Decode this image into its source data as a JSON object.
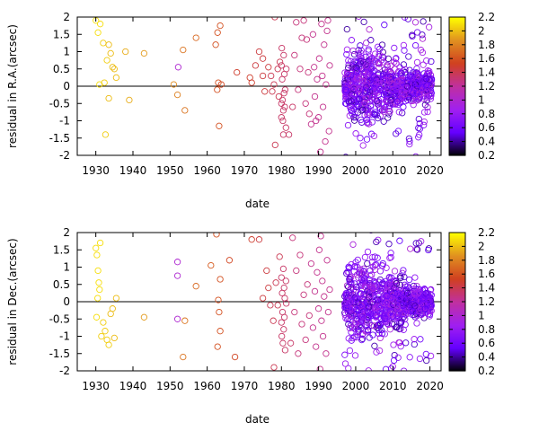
{
  "chart_data": [
    {
      "type": "scatter",
      "xlabel": "date",
      "ylabel": "residual in R.A.(arcsec)",
      "xlim": [
        1925,
        2023
      ],
      "ylim": [
        -2,
        2
      ],
      "xticks": [
        "1930",
        "1940",
        "1950",
        "1960",
        "1970",
        "1980",
        "1990",
        "2000",
        "2010",
        "2020"
      ],
      "yticks": [
        "2",
        "1.5",
        "1",
        "0.5",
        "0",
        "-0.5",
        "-1",
        "-1.5",
        "-2"
      ],
      "marker": "open-circle",
      "zero_line": true,
      "points": [
        [
          1930.0,
          1.9,
          2.1
        ],
        [
          1930.6,
          1.55,
          2.1
        ],
        [
          1931.2,
          1.8,
          2.1
        ],
        [
          1932.0,
          1.25,
          2.05
        ],
        [
          1932.6,
          -1.4,
          2.05
        ],
        [
          1933.0,
          0.75,
          2.05
        ],
        [
          1933.5,
          1.2,
          2.0
        ],
        [
          1934.0,
          0.95,
          2.0
        ],
        [
          1934.5,
          0.55,
          2.0
        ],
        [
          1935.0,
          0.5,
          2.0
        ],
        [
          1935.5,
          0.25,
          2.0
        ],
        [
          1933.5,
          -0.35,
          2.0
        ],
        [
          1931.0,
          0.05,
          2.1
        ],
        [
          1932.3,
          0.1,
          2.05
        ],
        [
          1938.0,
          1.0,
          1.95
        ],
        [
          1939.0,
          -0.4,
          1.95
        ],
        [
          1943.0,
          0.95,
          1.9
        ],
        [
          1951.0,
          0.05,
          1.85
        ],
        [
          1952.0,
          -0.25,
          1.8
        ],
        [
          1953.5,
          1.05,
          1.75
        ],
        [
          1954.0,
          -0.7,
          1.75
        ],
        [
          1952.2,
          0.55,
          1.0
        ],
        [
          1957.0,
          1.4,
          1.7
        ],
        [
          1962.3,
          1.2,
          1.6
        ],
        [
          1962.8,
          1.55,
          1.6
        ],
        [
          1963.0,
          0.1,
          1.6
        ],
        [
          1963.5,
          1.75,
          1.6
        ],
        [
          1963.2,
          -1.15,
          1.6
        ],
        [
          1962.7,
          -0.1,
          1.6
        ],
        [
          1963.8,
          0.05,
          1.55
        ],
        [
          1968.0,
          0.4,
          1.5
        ],
        [
          1971.5,
          0.25,
          1.5
        ],
        [
          1972.0,
          0.1,
          1.5
        ],
        [
          1973.0,
          0.6,
          1.45
        ],
        [
          1974.0,
          1.0,
          1.45
        ],
        [
          1975.0,
          0.3,
          1.45
        ],
        [
          1975.5,
          -0.15,
          1.45
        ],
        [
          1975.0,
          0.8,
          1.45
        ],
        [
          1976.5,
          0.55,
          1.45
        ],
        [
          1977.2,
          0.3,
          1.4
        ],
        [
          1977.5,
          -0.15,
          1.4
        ],
        [
          1978.0,
          0.05,
          1.4
        ],
        [
          1978.3,
          -1.7,
          1.4
        ],
        [
          1978.2,
          2.0,
          1.4
        ],
        [
          1979.0,
          0.5,
          1.4
        ],
        [
          1979.3,
          -0.3,
          1.4
        ],
        [
          1979.6,
          0.7,
          1.4
        ],
        [
          1980.0,
          -0.5,
          1.35
        ],
        [
          1980.0,
          0.6,
          1.35
        ],
        [
          1980.0,
          -0.9,
          1.35
        ],
        [
          1980.2,
          0.2,
          1.35
        ],
        [
          1980.3,
          -0.4,
          1.35
        ],
        [
          1980.4,
          -1.0,
          1.35
        ],
        [
          1980.5,
          -0.7,
          1.35
        ],
        [
          1980.6,
          0.9,
          1.35
        ],
        [
          1980.7,
          -0.2,
          1.35
        ],
        [
          1980.8,
          0.35,
          1.35
        ],
        [
          1980.9,
          -0.6,
          1.35
        ],
        [
          1981.0,
          -0.1,
          1.35
        ],
        [
          1981.2,
          -1.2,
          1.35
        ],
        [
          1981.3,
          0.5,
          1.35
        ],
        [
          1980.1,
          1.1,
          1.35
        ],
        [
          1980.5,
          -1.4,
          1.35
        ],
        [
          1982.0,
          -1.4,
          1.35
        ],
        [
          1983.0,
          -0.6,
          1.35
        ],
        [
          1983.5,
          0.9,
          1.3
        ],
        [
          1984.0,
          1.85,
          1.3
        ],
        [
          1984.5,
          -0.1,
          1.3
        ],
        [
          1985.0,
          0.5,
          1.3
        ],
        [
          1985.5,
          1.4,
          1.3
        ],
        [
          1986.0,
          1.9,
          1.3
        ],
        [
          1986.5,
          -0.5,
          1.3
        ],
        [
          1986.8,
          1.35,
          1.3
        ],
        [
          1987.2,
          0.4,
          1.3
        ],
        [
          1987.5,
          -0.8,
          1.3
        ],
        [
          1988.0,
          -1.1,
          1.25
        ],
        [
          1988.5,
          1.5,
          1.25
        ],
        [
          1988.8,
          0.55,
          1.25
        ],
        [
          1989.0,
          -0.3,
          1.25
        ],
        [
          1989.3,
          -1.0,
          1.25
        ],
        [
          1989.6,
          0.2,
          1.25
        ],
        [
          1990.0,
          -0.9,
          1.25
        ],
        [
          1990.2,
          0.8,
          1.25
        ],
        [
          1990.5,
          -1.9,
          1.25
        ],
        [
          1990.8,
          1.8,
          1.25
        ],
        [
          1991.0,
          0.3,
          1.25
        ],
        [
          1991.2,
          -0.6,
          1.25
        ],
        [
          1991.5,
          1.2,
          1.25
        ],
        [
          1992.0,
          0.05,
          1.25
        ],
        [
          1992.3,
          1.6,
          1.25
        ],
        [
          1992.5,
          1.9,
          1.25
        ],
        [
          1992.8,
          -1.3,
          1.25
        ],
        [
          1993.0,
          0.6,
          1.25
        ],
        [
          1991.8,
          -1.6,
          1.25
        ]
      ],
      "dense_band": {
        "from": 1997,
        "to": 2020.5,
        "approx_count": 900,
        "concentration": [
          {
            "from": 1998,
            "to": 2007.5,
            "spread": 0.75
          },
          {
            "from": 2007.5,
            "to": 2013.5,
            "spread": 0.5
          },
          {
            "from": 2013.5,
            "to": 2020.5,
            "spread": 0.3
          }
        ],
        "color_value_range": [
          0.4,
          1.0
        ]
      }
    },
    {
      "type": "scatter",
      "xlabel": "date",
      "ylabel": "residual in Dec.(arcsec)",
      "xlim": [
        1925,
        2023
      ],
      "ylim": [
        -2,
        2
      ],
      "xticks": [
        "1930",
        "1940",
        "1950",
        "1960",
        "1970",
        "1980",
        "1990",
        "2000",
        "2010",
        "2020"
      ],
      "yticks": [
        "2",
        "1.5",
        "1",
        "0.5",
        "0",
        "-0.5",
        "-1",
        "-1.5",
        "-2"
      ],
      "marker": "open-circle",
      "zero_line": true,
      "points": [
        [
          1930.0,
          1.55,
          2.1
        ],
        [
          1930.3,
          1.35,
          2.1
        ],
        [
          1930.6,
          0.9,
          2.1
        ],
        [
          1930.8,
          0.55,
          2.1
        ],
        [
          1931.0,
          0.35,
          2.1
        ],
        [
          1931.2,
          1.7,
          2.1
        ],
        [
          1930.5,
          0.1,
          2.1
        ],
        [
          1930.2,
          -0.45,
          2.1
        ],
        [
          1931.5,
          -1.0,
          2.05
        ],
        [
          1932.0,
          -0.6,
          2.05
        ],
        [
          1932.5,
          -0.85,
          2.05
        ],
        [
          1933.0,
          -1.1,
          2.05
        ],
        [
          1933.5,
          -1.25,
          2.05
        ],
        [
          1934.0,
          -0.35,
          2.0
        ],
        [
          1934.5,
          -0.2,
          2.0
        ],
        [
          1935.0,
          -1.05,
          2.0
        ],
        [
          1935.5,
          0.1,
          2.0
        ],
        [
          1943.0,
          -0.45,
          1.9
        ],
        [
          1952.0,
          1.15,
          1.0
        ],
        [
          1952.0,
          0.75,
          1.0
        ],
        [
          1952.0,
          -0.5,
          1.0
        ],
        [
          1953.5,
          -1.6,
          1.75
        ],
        [
          1954.0,
          -0.55,
          1.75
        ],
        [
          1957.0,
          0.45,
          1.7
        ],
        [
          1961.0,
          1.05,
          1.65
        ],
        [
          1962.5,
          1.95,
          1.6
        ],
        [
          1963.0,
          0.05,
          1.6
        ],
        [
          1963.2,
          -0.3,
          1.6
        ],
        [
          1963.5,
          0.65,
          1.6
        ],
        [
          1962.8,
          -1.3,
          1.6
        ],
        [
          1963.5,
          -0.85,
          1.6
        ],
        [
          1966.0,
          1.2,
          1.55
        ],
        [
          1967.5,
          -1.6,
          1.55
        ],
        [
          1972.0,
          1.8,
          1.5
        ],
        [
          1974.0,
          1.8,
          1.45
        ],
        [
          1975.0,
          0.1,
          1.45
        ],
        [
          1976.0,
          0.9,
          1.45
        ],
        [
          1976.5,
          0.4,
          1.45
        ],
        [
          1977.0,
          -0.1,
          1.4
        ],
        [
          1977.8,
          -0.55,
          1.4
        ],
        [
          1978.0,
          -1.9,
          1.4
        ],
        [
          1978.5,
          0.55,
          1.4
        ],
        [
          1979.0,
          -0.1,
          1.4
        ],
        [
          1979.5,
          1.3,
          1.4
        ],
        [
          1980.0,
          -0.6,
          1.35
        ],
        [
          1980.0,
          0.7,
          1.35
        ],
        [
          1980.1,
          -1.0,
          1.35
        ],
        [
          1980.2,
          0.25,
          1.35
        ],
        [
          1980.3,
          -0.3,
          1.35
        ],
        [
          1980.4,
          -1.2,
          1.35
        ],
        [
          1980.5,
          0.95,
          1.35
        ],
        [
          1980.6,
          -0.8,
          1.35
        ],
        [
          1980.7,
          0.4,
          1.35
        ],
        [
          1980.8,
          -0.45,
          1.35
        ],
        [
          1980.9,
          0.1,
          1.35
        ],
        [
          1981.0,
          -1.4,
          1.35
        ],
        [
          1981.2,
          0.6,
          1.35
        ],
        [
          1981.3,
          -0.05,
          1.35
        ],
        [
          1982.5,
          -1.2,
          1.35
        ],
        [
          1983.0,
          1.85,
          1.3
        ],
        [
          1983.5,
          -0.3,
          1.3
        ],
        [
          1984.0,
          0.9,
          1.3
        ],
        [
          1984.5,
          -1.5,
          1.3
        ],
        [
          1985.0,
          1.35,
          1.3
        ],
        [
          1985.5,
          -0.65,
          1.3
        ],
        [
          1986.0,
          0.2,
          1.3
        ],
        [
          1986.5,
          -1.1,
          1.3
        ],
        [
          1987.0,
          0.5,
          1.3
        ],
        [
          1987.5,
          -0.4,
          1.3
        ],
        [
          1988.0,
          1.1,
          1.25
        ],
        [
          1988.5,
          -0.75,
          1.25
        ],
        [
          1989.0,
          0.3,
          1.25
        ],
        [
          1989.3,
          -1.3,
          1.25
        ],
        [
          1989.6,
          0.85,
          1.25
        ],
        [
          1990.0,
          -0.2,
          1.25
        ],
        [
          1990.2,
          1.5,
          1.25
        ],
        [
          1990.4,
          -1.95,
          1.25
        ],
        [
          1990.6,
          1.9,
          1.25
        ],
        [
          1990.8,
          -0.55,
          1.25
        ],
        [
          1991.0,
          0.6,
          1.25
        ],
        [
          1991.2,
          -1.0,
          1.25
        ],
        [
          1991.5,
          0.15,
          1.25
        ],
        [
          1992.0,
          -1.5,
          1.25
        ],
        [
          1992.3,
          1.2,
          1.25
        ],
        [
          1992.6,
          -0.3,
          1.25
        ],
        [
          1993.0,
          0.35,
          1.25
        ]
      ],
      "dense_band": {
        "from": 1997,
        "to": 2020.5,
        "approx_count": 900,
        "concentration": [
          {
            "from": 1998,
            "to": 2007.5,
            "spread": 0.75
          },
          {
            "from": 2007.5,
            "to": 2013.5,
            "spread": 0.5
          },
          {
            "from": 2013.5,
            "to": 2020.5,
            "spread": 0.3
          }
        ],
        "color_value_range": [
          0.4,
          1.0
        ]
      }
    }
  ],
  "colorbar": {
    "range": [
      0.2,
      2.2
    ],
    "ticks": [
      "2.2",
      "2",
      "1.8",
      "1.6",
      "1.4",
      "1.2",
      "1",
      "0.8",
      "0.6",
      "0.4",
      "0.2"
    ],
    "palette": [
      "#000000",
      "#6400ff",
      "#a020f0",
      "#c030a0",
      "#d04020",
      "#e09020",
      "#ffff00"
    ]
  }
}
